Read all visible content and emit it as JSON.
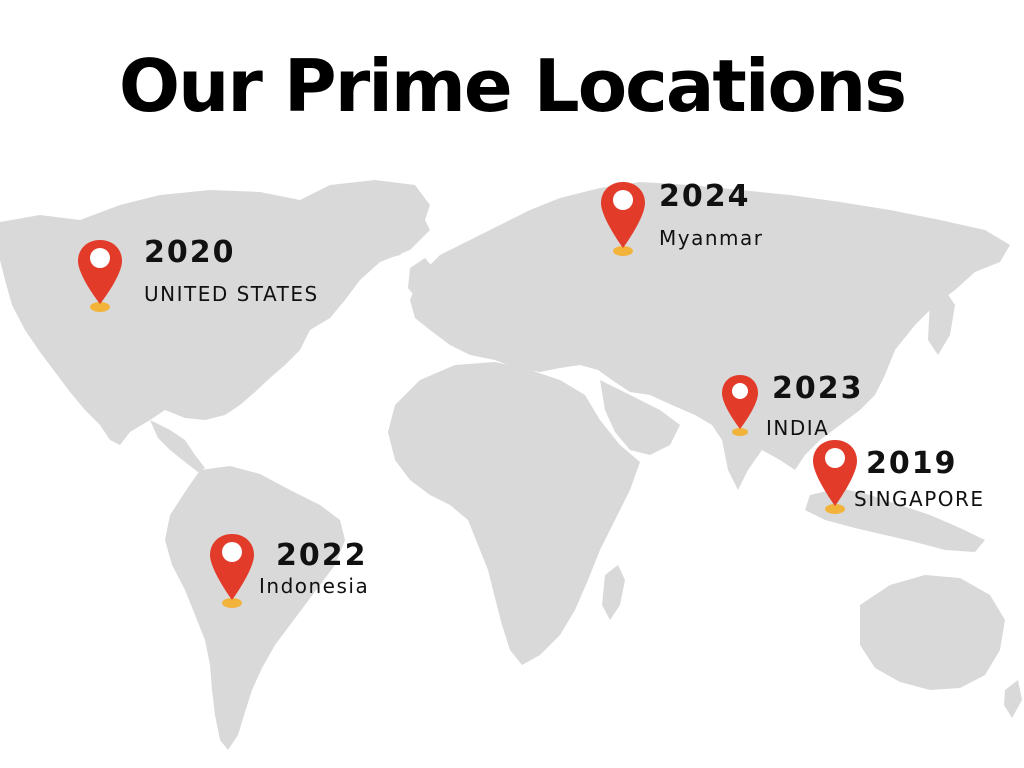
{
  "page": {
    "title": "Our Prime Locations"
  },
  "colors": {
    "land": "#d9d9d9",
    "pin": "#e23b2a",
    "pin_dot": "#ffffff",
    "pin_base": "#f2b33a",
    "text": "#111111"
  },
  "locations": [
    {
      "year": "2020",
      "name": "UNITED STATES",
      "icon": "map-pin-icon"
    },
    {
      "year": "2024",
      "name": "Myanmar",
      "icon": "map-pin-icon"
    },
    {
      "year": "2023",
      "name": "INDIA",
      "icon": "map-pin-icon"
    },
    {
      "year": "2019",
      "name": "SINGAPORE",
      "icon": "map-pin-icon"
    },
    {
      "year": "2022",
      "name": "Indonesia",
      "icon": "map-pin-icon"
    }
  ]
}
